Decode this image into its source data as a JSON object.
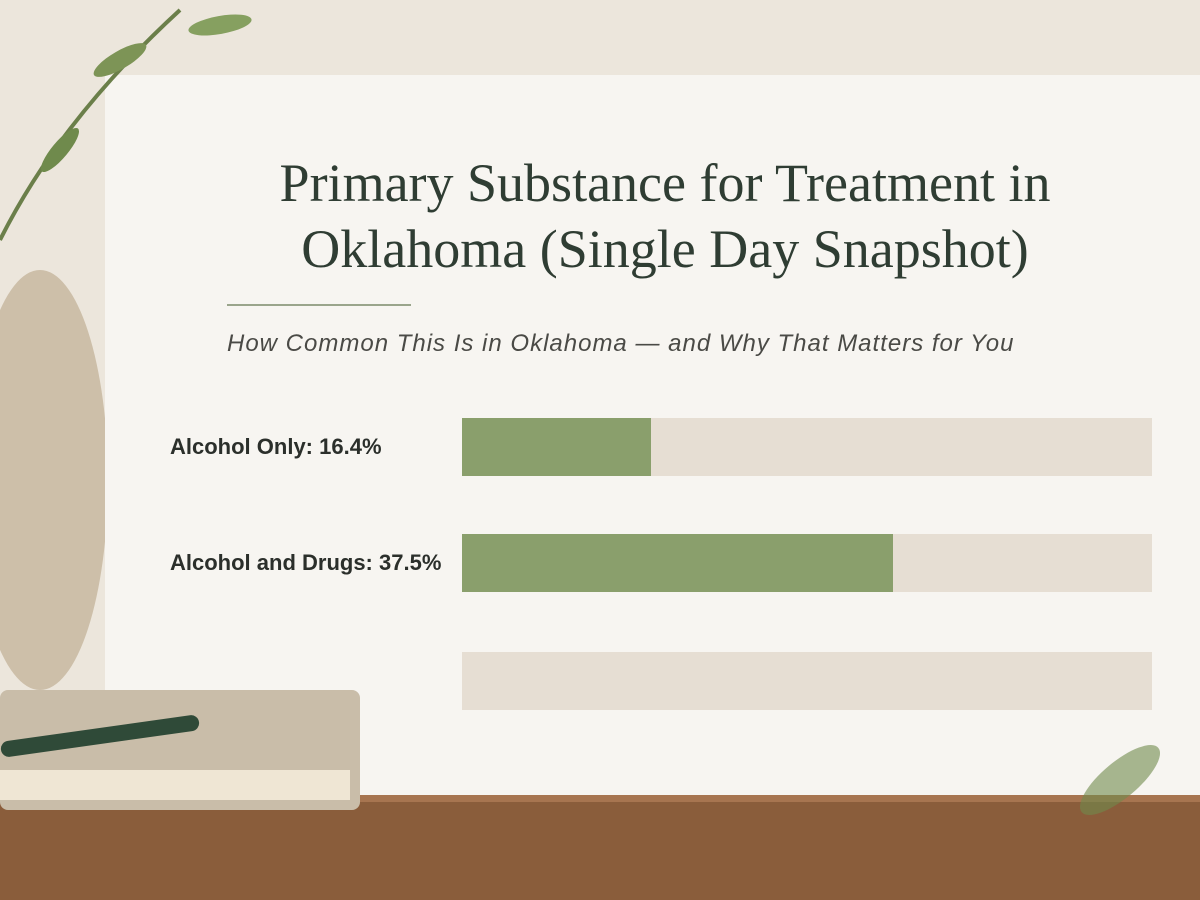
{
  "chart_data": {
    "type": "bar",
    "orientation": "horizontal",
    "title": "Primary Substance for Treatment in Oklahoma (Single Day Snapshot)",
    "subtitle": "How Common This Is in Oklahoma — and Why That Matters for You",
    "categories": [
      "Alcohol Only:",
      "Alcohol and Drugs:",
      null
    ],
    "values": [
      16.4,
      37.5,
      null
    ],
    "value_labels": [
      "16.4%",
      "37.5%",
      null
    ],
    "color": "#8a9f6c",
    "track_color": "#e6ded3",
    "xlim": [
      0,
      60
    ]
  }
}
